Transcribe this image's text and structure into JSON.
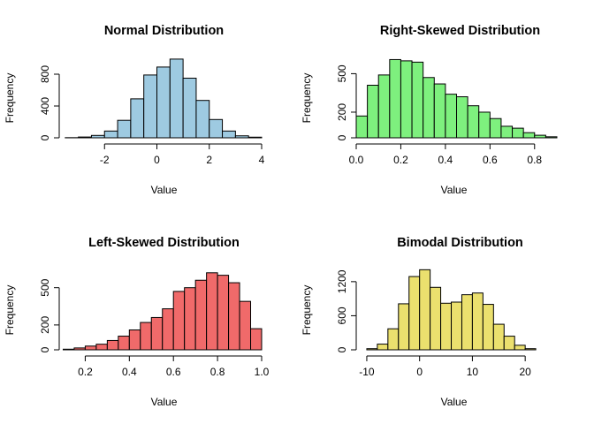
{
  "chart_data": [
    {
      "type": "bar",
      "title": "Normal Distribution",
      "xlabel": "Value",
      "ylabel": "Frequency",
      "color": "#9ecae1",
      "xlim": [
        -4,
        4
      ],
      "ylim": [
        0,
        1000
      ],
      "xticks": [
        -2,
        0,
        2,
        4
      ],
      "yticks": [
        0,
        400,
        800
      ],
      "bins": [
        {
          "x0": -3.5,
          "x1": -3.0,
          "y": 2
        },
        {
          "x0": -3.0,
          "x1": -2.5,
          "y": 10
        },
        {
          "x0": -2.5,
          "x1": -2.0,
          "y": 30
        },
        {
          "x0": -2.0,
          "x1": -1.5,
          "y": 85
        },
        {
          "x0": -1.5,
          "x1": -1.0,
          "y": 220
        },
        {
          "x0": -1.0,
          "x1": -0.5,
          "y": 490
        },
        {
          "x0": -0.5,
          "x1": 0.0,
          "y": 790
        },
        {
          "x0": 0.0,
          "x1": 0.5,
          "y": 890
        },
        {
          "x0": 0.5,
          "x1": 1.0,
          "y": 990
        },
        {
          "x0": 1.0,
          "x1": 1.5,
          "y": 750
        },
        {
          "x0": 1.5,
          "x1": 2.0,
          "y": 470
        },
        {
          "x0": 2.0,
          "x1": 2.5,
          "y": 230
        },
        {
          "x0": 2.5,
          "x1": 3.0,
          "y": 85
        },
        {
          "x0": 3.0,
          "x1": 3.5,
          "y": 25
        },
        {
          "x0": 3.5,
          "x1": 4.0,
          "y": 8
        }
      ]
    },
    {
      "type": "bar",
      "title": "Right-Skewed Distribution",
      "xlabel": "Value",
      "ylabel": "Frequency",
      "color": "#7ef07e",
      "xlim": [
        0,
        0.9
      ],
      "ylim": [
        0,
        620
      ],
      "xticks": [
        0.0,
        0.2,
        0.4,
        0.6,
        0.8
      ],
      "xtick_labels": [
        "0.0",
        "0.2",
        "0.4",
        "0.6",
        "0.8"
      ],
      "yticks": [
        0,
        200,
        500
      ],
      "bins": [
        {
          "x0": 0.0,
          "x1": 0.05,
          "y": 170
        },
        {
          "x0": 0.05,
          "x1": 0.1,
          "y": 410
        },
        {
          "x0": 0.1,
          "x1": 0.15,
          "y": 490
        },
        {
          "x0": 0.15,
          "x1": 0.2,
          "y": 610
        },
        {
          "x0": 0.2,
          "x1": 0.25,
          "y": 600
        },
        {
          "x0": 0.25,
          "x1": 0.3,
          "y": 590
        },
        {
          "x0": 0.3,
          "x1": 0.35,
          "y": 470
        },
        {
          "x0": 0.35,
          "x1": 0.4,
          "y": 420
        },
        {
          "x0": 0.4,
          "x1": 0.45,
          "y": 340
        },
        {
          "x0": 0.45,
          "x1": 0.5,
          "y": 320
        },
        {
          "x0": 0.5,
          "x1": 0.55,
          "y": 250
        },
        {
          "x0": 0.55,
          "x1": 0.6,
          "y": 200
        },
        {
          "x0": 0.6,
          "x1": 0.65,
          "y": 150
        },
        {
          "x0": 0.65,
          "x1": 0.7,
          "y": 90
        },
        {
          "x0": 0.7,
          "x1": 0.75,
          "y": 75
        },
        {
          "x0": 0.75,
          "x1": 0.8,
          "y": 40
        },
        {
          "x0": 0.8,
          "x1": 0.85,
          "y": 20
        },
        {
          "x0": 0.85,
          "x1": 0.9,
          "y": 8
        }
      ]
    },
    {
      "type": "bar",
      "title": "Left-Skewed Distribution",
      "xlabel": "Value",
      "ylabel": "Frequency",
      "color": "#f06a6a",
      "xlim": [
        0.05,
        1.0
      ],
      "ylim": [
        0,
        640
      ],
      "xticks": [
        0.2,
        0.4,
        0.6,
        0.8,
        1.0
      ],
      "xtick_labels": [
        "0.2",
        "0.4",
        "0.6",
        "0.8",
        "1.0"
      ],
      "yticks": [
        0,
        200,
        500
      ],
      "bins": [
        {
          "x0": 0.1,
          "x1": 0.15,
          "y": 5
        },
        {
          "x0": 0.15,
          "x1": 0.2,
          "y": 15
        },
        {
          "x0": 0.2,
          "x1": 0.25,
          "y": 30
        },
        {
          "x0": 0.25,
          "x1": 0.3,
          "y": 45
        },
        {
          "x0": 0.3,
          "x1": 0.35,
          "y": 75
        },
        {
          "x0": 0.35,
          "x1": 0.4,
          "y": 110
        },
        {
          "x0": 0.4,
          "x1": 0.45,
          "y": 160
        },
        {
          "x0": 0.45,
          "x1": 0.5,
          "y": 220
        },
        {
          "x0": 0.5,
          "x1": 0.55,
          "y": 260
        },
        {
          "x0": 0.55,
          "x1": 0.6,
          "y": 330
        },
        {
          "x0": 0.6,
          "x1": 0.65,
          "y": 470
        },
        {
          "x0": 0.65,
          "x1": 0.7,
          "y": 500
        },
        {
          "x0": 0.7,
          "x1": 0.75,
          "y": 560
        },
        {
          "x0": 0.75,
          "x1": 0.8,
          "y": 620
        },
        {
          "x0": 0.8,
          "x1": 0.85,
          "y": 600
        },
        {
          "x0": 0.85,
          "x1": 0.9,
          "y": 540
        },
        {
          "x0": 0.9,
          "x1": 0.95,
          "y": 390
        },
        {
          "x0": 0.95,
          "x1": 1.0,
          "y": 170
        }
      ]
    },
    {
      "type": "bar",
      "title": "Bimodal Distribution",
      "xlabel": "Value",
      "ylabel": "Frequency",
      "color": "#ebe06e",
      "xlim": [
        -12,
        26
      ],
      "ylim": [
        0,
        1400
      ],
      "xticks": [
        -10,
        0,
        10,
        20
      ],
      "yticks": [
        0,
        600,
        1200
      ],
      "bins": [
        {
          "x0": -10,
          "x1": -8,
          "y": 20
        },
        {
          "x0": -8,
          "x1": -6,
          "y": 100
        },
        {
          "x0": -6,
          "x1": -4,
          "y": 370
        },
        {
          "x0": -4,
          "x1": -2,
          "y": 810
        },
        {
          "x0": -2,
          "x1": 0,
          "y": 1290
        },
        {
          "x0": 0,
          "x1": 2,
          "y": 1410
        },
        {
          "x0": 2,
          "x1": 4,
          "y": 1100
        },
        {
          "x0": 4,
          "x1": 6,
          "y": 820
        },
        {
          "x0": 6,
          "x1": 8,
          "y": 840
        },
        {
          "x0": 8,
          "x1": 10,
          "y": 970
        },
        {
          "x0": 10,
          "x1": 12,
          "y": 1000
        },
        {
          "x0": 12,
          "x1": 14,
          "y": 800
        },
        {
          "x0": 14,
          "x1": 16,
          "y": 450
        },
        {
          "x0": 16,
          "x1": 18,
          "y": 240
        },
        {
          "x0": 18,
          "x1": 20,
          "y": 80
        },
        {
          "x0": 20,
          "x1": 22,
          "y": 20
        }
      ]
    }
  ]
}
